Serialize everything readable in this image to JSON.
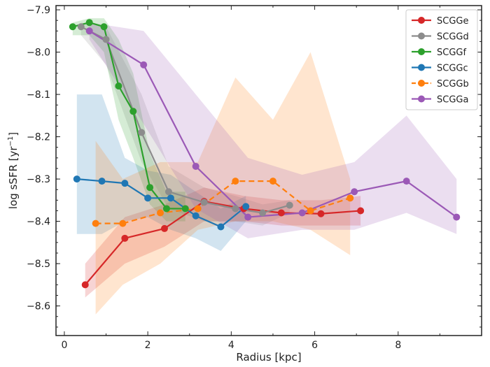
{
  "chart_data": {
    "type": "line",
    "xlabel": "Radius [kpc]",
    "ylabel_main": "log sSFR [yr",
    "ylabel_sup": "−1",
    "ylabel_close": "]",
    "xlim": [
      -0.2,
      10.0
    ],
    "ylim": [
      -8.67,
      -7.89
    ],
    "x_ticks": [
      0,
      2,
      4,
      6,
      8
    ],
    "x_tick_labels": [
      "0",
      "2",
      "4",
      "6",
      "8"
    ],
    "y_ticks": [
      -7.9,
      -8.0,
      -8.1,
      -8.2,
      -8.3,
      -8.4,
      -8.5,
      -8.6
    ],
    "y_tick_labels": [
      "−7.9",
      "−8.0",
      "−8.1",
      "−8.2",
      "−8.3",
      "−8.4",
      "−8.5",
      "−8.6"
    ],
    "legend_position": "top-right",
    "grid": false,
    "series": [
      {
        "name": "SCGGe",
        "color": "#d62728",
        "dashed": false,
        "x": [
          0.5,
          1.45,
          2.4,
          3.35,
          4.3,
          5.2,
          6.15,
          7.1
        ],
        "y": [
          -8.55,
          -8.44,
          -8.417,
          -8.353,
          -8.37,
          -8.38,
          -8.382,
          -8.375
        ],
        "lower": [
          -8.58,
          -8.5,
          -8.46,
          -8.4,
          -8.4,
          -8.41,
          -8.41,
          -8.41
        ],
        "upper": [
          -8.5,
          -8.39,
          -8.36,
          -8.32,
          -8.34,
          -8.35,
          -8.35,
          -8.34
        ]
      },
      {
        "name": "SCGGd",
        "color": "#8c8c8c",
        "dashed": false,
        "x": [
          0.4,
          1.0,
          1.85,
          2.5,
          3.35,
          4.1,
          4.75,
          5.4
        ],
        "y": [
          -7.94,
          -7.97,
          -8.19,
          -8.33,
          -8.355,
          -8.37,
          -8.38,
          -8.362
        ],
        "lower": [
          -7.96,
          -8.03,
          -8.26,
          -8.37,
          -8.4,
          -8.4,
          -8.41,
          -8.38
        ],
        "upper": [
          -7.93,
          -7.94,
          -8.1,
          -8.27,
          -8.32,
          -8.34,
          -8.36,
          -8.35
        ]
      },
      {
        "name": "SCGGf",
        "color": "#2ca02c",
        "dashed": false,
        "x": [
          0.2,
          0.6,
          0.95,
          1.3,
          1.65,
          2.05,
          2.45,
          2.9
        ],
        "y": [
          -7.94,
          -7.93,
          -7.94,
          -8.08,
          -8.14,
          -8.32,
          -8.37,
          -8.37
        ],
        "lower": [
          -7.96,
          -7.96,
          -8.0,
          -8.16,
          -8.25,
          -8.36,
          -8.4,
          -8.4
        ],
        "upper": [
          -7.93,
          -7.92,
          -7.92,
          -7.97,
          -8.05,
          -8.24,
          -8.33,
          -8.33
        ]
      },
      {
        "name": "SCGGc",
        "color": "#1f77b4",
        "dashed": false,
        "x": [
          0.3,
          0.9,
          1.45,
          2.0,
          2.55,
          3.15,
          3.75,
          4.35
        ],
        "y": [
          -8.3,
          -8.305,
          -8.31,
          -8.345,
          -8.345,
          -8.387,
          -8.413,
          -8.365
        ],
        "lower": [
          -8.43,
          -8.43,
          -8.4,
          -8.39,
          -8.42,
          -8.44,
          -8.47,
          -8.4
        ],
        "upper": [
          -8.1,
          -8.1,
          -8.25,
          -8.28,
          -8.29,
          -8.33,
          -8.37,
          -8.34
        ]
      },
      {
        "name": "SCGGb",
        "color": "#ff7f0e",
        "dashed": true,
        "x": [
          0.75,
          1.4,
          2.3,
          3.2,
          4.1,
          5.0,
          5.9,
          6.85
        ],
        "y": [
          -8.405,
          -8.405,
          -8.38,
          -8.37,
          -8.305,
          -8.305,
          -8.375,
          -8.345
        ],
        "lower": [
          -8.62,
          -8.55,
          -8.5,
          -8.42,
          -8.4,
          -8.4,
          -8.42,
          -8.48
        ],
        "upper": [
          -8.21,
          -8.3,
          -8.26,
          -8.26,
          -8.06,
          -8.16,
          -8.0,
          -8.3
        ]
      },
      {
        "name": "SCGGa",
        "color": "#9b59b6",
        "dashed": false,
        "x": [
          0.6,
          1.9,
          3.15,
          4.4,
          5.7,
          6.95,
          8.2,
          9.4
        ],
        "y": [
          -7.95,
          -8.03,
          -8.27,
          -8.39,
          -8.38,
          -8.33,
          -8.305,
          -8.39
        ],
        "lower": [
          -7.97,
          -8.17,
          -8.37,
          -8.44,
          -8.42,
          -8.42,
          -8.38,
          -8.43
        ],
        "upper": [
          -7.93,
          -7.95,
          -8.1,
          -8.25,
          -8.29,
          -8.26,
          -8.15,
          -8.3
        ]
      }
    ]
  }
}
